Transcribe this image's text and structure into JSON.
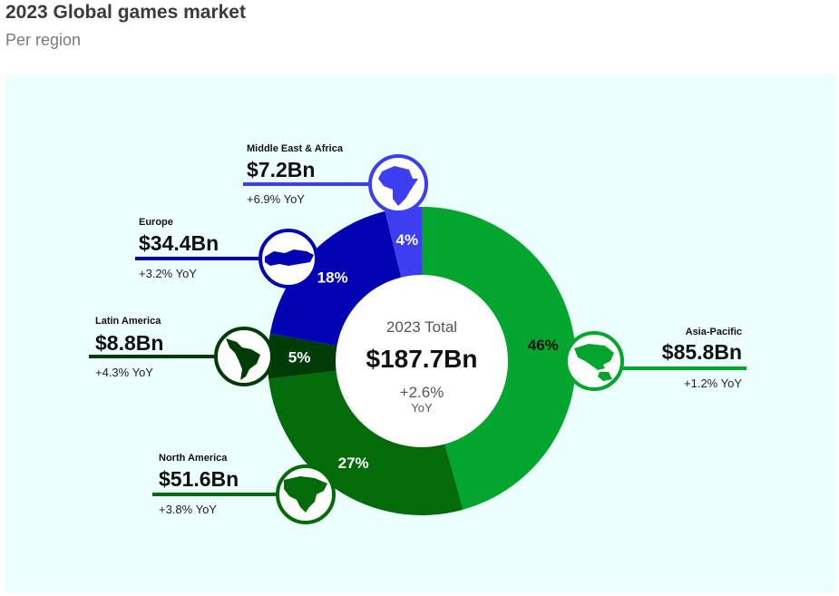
{
  "header": {
    "title": "2023 Global games market",
    "subtitle": "Per region"
  },
  "center": {
    "title": "2023 Total",
    "value": "$187.7Bn",
    "yoy": "+2.6%",
    "yoy_unit": "YoY"
  },
  "chart_data": {
    "type": "pie",
    "variant": "donut",
    "unit": "Bn USD",
    "total": 187.7,
    "slices": [
      {
        "name": "Asia-Pacific",
        "value": 85.8,
        "value_label": "$85.8Bn",
        "percent": 46,
        "percent_label": "46%",
        "yoy": "+1.2% YoY",
        "color": "#02a52d",
        "label_color": "#111111",
        "icon": "asia-pacific-map-icon"
      },
      {
        "name": "North America",
        "value": 51.6,
        "value_label": "$51.6Bn",
        "percent": 27,
        "percent_label": "27%",
        "yoy": "+3.8% YoY",
        "color": "#036b09",
        "label_color": "#ffffff",
        "icon": "north-america-map-icon"
      },
      {
        "name": "Latin America",
        "value": 8.8,
        "value_label": "$8.8Bn",
        "percent": 5,
        "percent_label": "5%",
        "yoy": "+4.3% YoY",
        "color": "#013b06",
        "label_color": "#ffffff",
        "icon": "latin-america-map-icon"
      },
      {
        "name": "Europe",
        "value": 34.4,
        "value_label": "$34.4Bn",
        "percent": 18,
        "percent_label": "18%",
        "yoy": "+3.2% YoY",
        "color": "#0303b3",
        "label_color": "#ffffff",
        "icon": "europe-map-icon"
      },
      {
        "name": "Middle East & Africa",
        "value": 7.2,
        "value_label": "$7.2Bn",
        "percent": 4,
        "percent_label": "4%",
        "yoy": "+6.9% YoY",
        "color": "#3d3df2",
        "label_color": "#ffffff",
        "icon": "africa-map-icon"
      }
    ]
  }
}
